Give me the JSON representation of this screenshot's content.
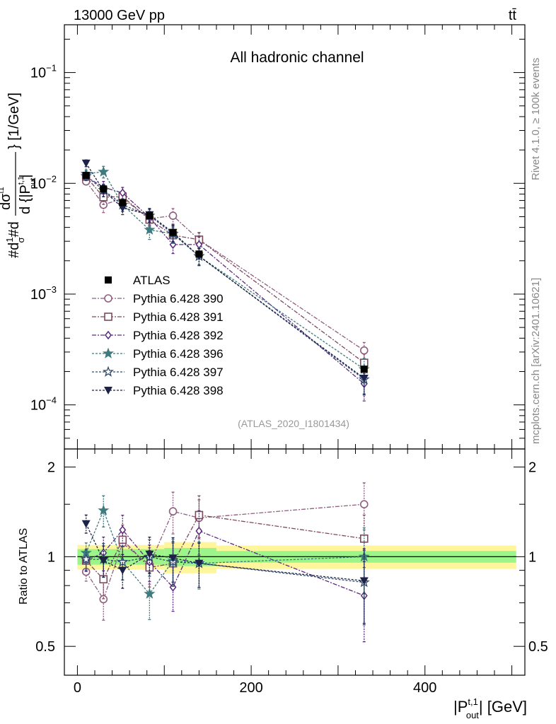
{
  "header": {
    "left": "13000 GeV pp",
    "right": "tt̄"
  },
  "watermark": {
    "rivet": "Rivet 4.1.0, ≥ 100k events",
    "mcplots": "mcplots.cern.ch [arXiv:2401.10621]"
  },
  "chart_data": {
    "type": "scatter",
    "title": "All hadronic channel",
    "analysis": "(ATLAS_2020_I1801434)",
    "x": [
      10,
      30,
      52,
      83,
      110,
      140,
      330
    ],
    "xlim": [
      -15,
      515
    ],
    "xticks": [
      0,
      200,
      400
    ],
    "xlabel": {
      "base": "|P",
      "sup": "t,1",
      "sub": "out",
      "suffix": "| [GeV]"
    },
    "main": {
      "yscale": "log",
      "ylim": [
        4e-05,
        0.27
      ],
      "yticks": [
        {
          "v": 0.1,
          "exp": "−1"
        },
        {
          "v": 0.01,
          "exp": "−2"
        },
        {
          "v": 0.001,
          "exp": "−3"
        },
        {
          "v": 0.0001,
          "exp": "−4"
        }
      ],
      "ylabel": "#d1/σ#d dσ^{t1}/d{|P^{t,1}_{out}|} [1/GeV]",
      "ylabel_parts": {
        "unit": "} [1/GeV]",
        "frac_num": "dσ",
        "frac_sup": "t1",
        "frac_den": "d {|P",
        "frac_den_sup": "t,1",
        "frac_den_sub": "out",
        "frac_den_end": "|",
        "prefix_a": "#d",
        "prefix_b": "1",
        "prefix_c": "σ",
        "prefix_d": "#d"
      },
      "data": {
        "name": "ATLAS",
        "values": [
          0.0118,
          0.0089,
          0.0067,
          0.0051,
          0.0036,
          0.0023,
          0.00021
        ],
        "band_rel": [
          0.06,
          0.05,
          0.06,
          0.06,
          0.08,
          0.07,
          0.08
        ]
      },
      "series": [
        {
          "name": "Pythia 6.428 390",
          "color": "#8f5e80",
          "marker": "circle-open",
          "dash": "6,2,2,2",
          "values": [
            0.0104,
            0.0064,
            0.0073,
            0.0048,
            0.0051,
            0.0031,
            0.00031
          ],
          "errs": [
            0.07,
            0.15,
            0.12,
            0.14,
            0.16,
            0.15,
            0.18
          ]
        },
        {
          "name": "Pythia 6.428 391",
          "color": "#7b4a5f",
          "marker": "square-open",
          "dash": "6,2,2,2",
          "values": [
            0.0115,
            0.0075,
            0.0076,
            0.0047,
            0.0034,
            0.0031,
            0.00024
          ],
          "errs": [
            0.08,
            0.14,
            0.12,
            0.14,
            0.17,
            0.16,
            0.2
          ]
        },
        {
          "name": "Pythia 6.428 392",
          "color": "#5b2a7e",
          "marker": "diamond-open",
          "dash": "6,2,2,2",
          "values": [
            0.0115,
            0.0092,
            0.0082,
            0.0049,
            0.0028,
            0.0028,
            0.000155
          ],
          "errs": [
            0.08,
            0.13,
            0.12,
            0.14,
            0.17,
            0.17,
            0.3
          ]
        },
        {
          "name": "Pythia 6.428 396",
          "color": "#3e7a7e",
          "marker": "star-filled",
          "dash": "3,2",
          "values": [
            0.0122,
            0.0127,
            0.0064,
            0.0038,
            0.0035,
            0.0022,
            0.00021
          ],
          "errs": [
            0.08,
            0.12,
            0.13,
            0.18,
            0.18,
            0.18,
            0.25
          ]
        },
        {
          "name": "Pythia 6.428 397",
          "color": "#2d4a6e",
          "marker": "star-open",
          "dash": "3,2",
          "values": [
            0.0116,
            0.0087,
            0.0064,
            0.0051,
            0.0035,
            0.0022,
            0.00017
          ],
          "errs": [
            0.08,
            0.13,
            0.13,
            0.14,
            0.17,
            0.17,
            0.28
          ]
        },
        {
          "name": "Pythia 6.428 398",
          "color": "#1c2248",
          "marker": "triangle-down-filled",
          "dash": "3,2",
          "values": [
            0.0152,
            0.0086,
            0.006,
            0.0052,
            0.0036,
            0.0022,
            0.000174
          ],
          "errs": [
            0.07,
            0.12,
            0.13,
            0.14,
            0.17,
            0.17,
            0.28
          ]
        }
      ]
    },
    "ratio": {
      "ylabel": "Ratio to ATLAS",
      "ylim": [
        0.4,
        2.3
      ],
      "yticks": [
        0.5,
        1,
        2
      ],
      "ytick_labels": [
        "0.5",
        "1",
        "2"
      ],
      "band_green": [
        [
          0,
          100,
          0.06
        ],
        [
          100,
          160,
          0.07
        ],
        [
          160,
          505,
          0.045
        ]
      ],
      "band_yellow": [
        [
          0,
          100,
          0.095
        ],
        [
          100,
          160,
          0.12
        ],
        [
          160,
          505,
          0.09
        ]
      ],
      "series_ratios": [
        [
          0.89,
          0.72,
          1.11,
          0.94,
          1.42,
          1.35,
          1.5
        ],
        [
          0.97,
          0.84,
          1.14,
          0.92,
          0.95,
          1.38,
          1.15
        ],
        [
          0.97,
          1.03,
          1.23,
          0.96,
          0.79,
          1.22,
          0.74
        ],
        [
          1.03,
          1.43,
          0.96,
          0.75,
          0.97,
          0.95,
          1.0
        ],
        [
          0.98,
          0.98,
          0.96,
          1.0,
          0.96,
          0.95,
          0.82
        ],
        [
          1.29,
          0.97,
          0.9,
          1.02,
          0.99,
          0.95,
          0.83
        ]
      ]
    }
  }
}
